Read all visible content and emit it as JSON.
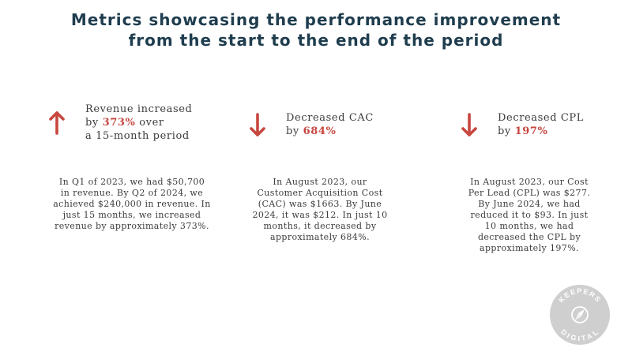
{
  "title": {
    "line1": "Metrics showcasing the performance improvement",
    "line2": "from the start to the end of the period"
  },
  "metrics": [
    {
      "icon": "arrow-up-icon",
      "line1": "Revenue increased",
      "line2_prefix": "by",
      "percent": "373%",
      "line2_suffix": "over",
      "line3": "a 15-month period",
      "description": [
        "In Q1 of 2023, we had $50,700",
        "in revenue. By Q2 of 2024, we",
        "achieved $240,000 in revenue. In",
        "just 15 months, we increased",
        "revenue by approximately 373%."
      ]
    },
    {
      "icon": "arrow-down-icon",
      "line1": "Decreased CAC",
      "line2_prefix": "by",
      "percent": "684%",
      "description": [
        "In August 2023, our",
        "Customer Acquisition Cost",
        "(CAC) was $1663. By June",
        "2024, it was $212. In just 10",
        "months, it decreased by",
        "approximately 684%."
      ]
    },
    {
      "icon": "arrow-down-icon",
      "line1": "Decreased CPL",
      "line2_prefix": "by",
      "percent": "197%",
      "description": [
        "In August 2023, our Cost",
        "Per Lead (CPL) was $277.",
        "By June 2024, we had",
        "reduced it to $93. In just",
        "10 months, we had",
        "decreased the CPL by",
        "approximately 197%."
      ]
    }
  ],
  "logo": {
    "top_text": "KEEPERS",
    "bottom_text": "DIGITAL"
  },
  "colors": {
    "title": "#1f3d4e",
    "accent": "#c7473f",
    "body_text": "#3c3c3c"
  }
}
